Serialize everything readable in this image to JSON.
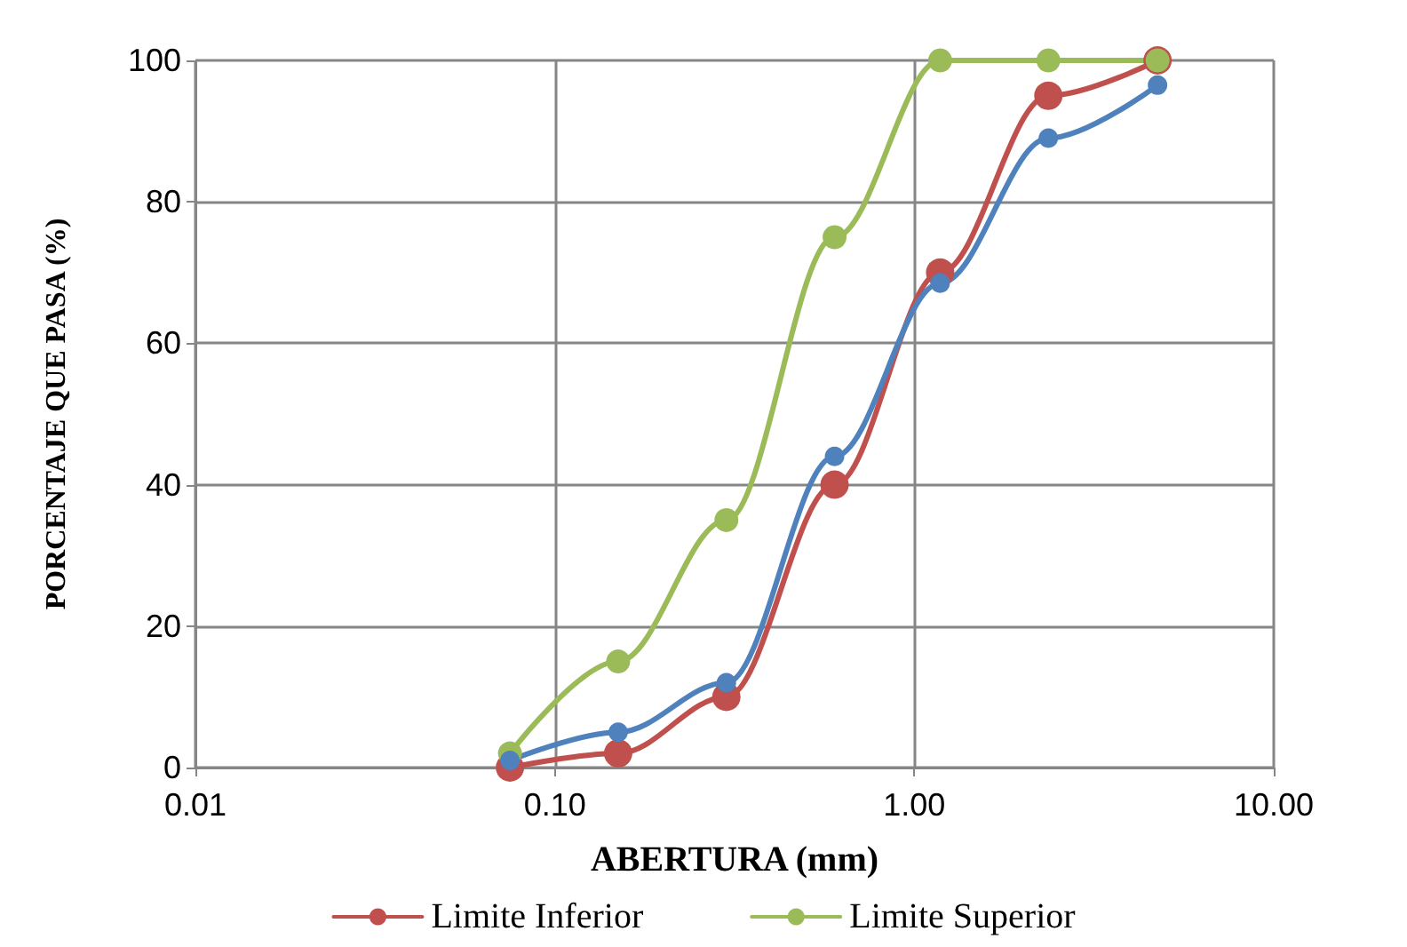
{
  "chart_data": {
    "type": "line",
    "xlabel": "ABERTURA (mm)",
    "ylabel": "PORCENTAJE QUE PASA (%)",
    "x": [
      0.075,
      0.15,
      0.3,
      0.6,
      1.18,
      2.36,
      4.75
    ],
    "series": [
      {
        "name": "Limite Inferior",
        "color": "#c0504d",
        "values": [
          0,
          2,
          10,
          40,
          70,
          95,
          100
        ]
      },
      {
        "name": "Limite Superior",
        "color": "#9bbb59",
        "values": [
          2,
          15,
          35,
          75,
          100,
          100,
          100
        ]
      },
      {
        "color": "#4f81bd",
        "values": [
          1,
          5,
          12,
          44,
          68.5,
          89,
          96.5
        ]
      }
    ],
    "log": "x",
    "xlim": [
      0.01,
      10
    ],
    "xticks": [
      {
        "value": 0.01,
        "label": "0.01"
      },
      {
        "value": 0.1,
        "label": "0.10"
      },
      {
        "value": 1,
        "label": "1.00"
      },
      {
        "value": 10,
        "label": "10.00"
      }
    ],
    "ylim": [
      0,
      100
    ],
    "yticks": [
      0,
      20,
      40,
      60,
      80,
      100
    ],
    "grid": true,
    "legend": "bottom",
    "marker": "circle",
    "line_style": "solid"
  }
}
